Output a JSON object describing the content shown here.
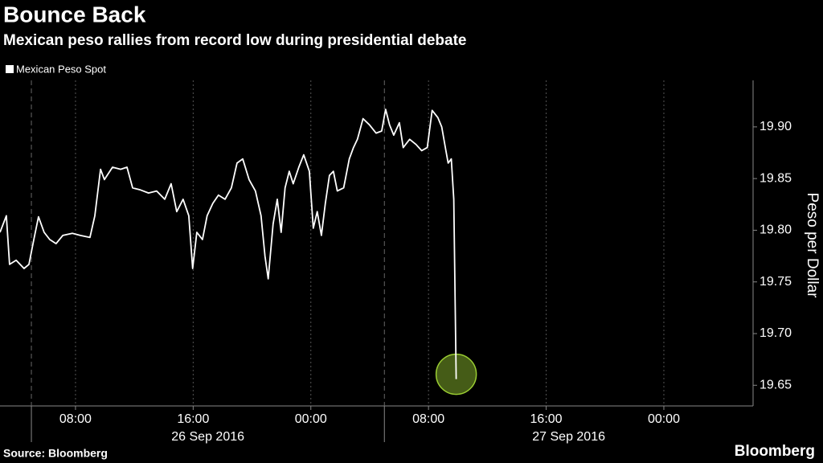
{
  "chart_data": {
    "type": "line",
    "title": "Bounce Back",
    "subtitle": "Mexican peso rallies from record low during presidential debate",
    "y_label": "Peso per Dollar",
    "source": "Source: Bloomberg",
    "brand": "Bloomberg",
    "grid": "x",
    "legend": "top-left",
    "xlim": [
      "2016-09-26T02:52",
      "2016-09-28T06:04"
    ],
    "xticks": [
      {
        "value": "2016-09-26T08:00",
        "label": "08:00"
      },
      {
        "value": "2016-09-26T16:00",
        "label": "16:00"
      },
      {
        "value": "2016-09-27T00:00",
        "label": "00:00"
      },
      {
        "value": "2016-09-27T08:00",
        "label": "08:00"
      },
      {
        "value": "2016-09-27T16:00",
        "label": "16:00"
      },
      {
        "value": "2016-09-28T00:00",
        "label": "00:00"
      }
    ],
    "day_breaks": [
      "2016-09-26T05:00",
      "2016-09-27T05:00"
    ],
    "date_labels": [
      "26 Sep 2016",
      "27 Sep 2016"
    ],
    "ylim": [
      19.63,
      19.945
    ],
    "yticks": [
      19.65,
      {
        "value": 19.7,
        "label": "19.70"
      },
      19.75,
      {
        "value": 19.8,
        "label": "19.80"
      },
      19.85,
      {
        "value": 19.9,
        "label": "19.90"
      }
    ],
    "x": [
      "2016-09-26T02:52",
      "2016-09-26T03:18",
      "2016-09-26T03:31",
      "2016-09-26T03:58",
      "2016-09-26T04:30",
      "2016-09-26T04:50",
      "2016-09-26T05:10",
      "2016-09-26T05:29",
      "2016-09-26T05:52",
      "2016-09-26T06:15",
      "2016-09-26T06:41",
      "2016-09-26T07:08",
      "2016-09-26T07:47",
      "2016-09-26T08:20",
      "2016-09-26T08:59",
      "2016-09-26T09:19",
      "2016-09-26T09:42",
      "2016-09-26T09:58",
      "2016-09-26T10:31",
      "2016-09-26T11:04",
      "2016-09-26T11:30",
      "2016-09-26T11:53",
      "2016-09-26T12:25",
      "2016-09-26T12:58",
      "2016-09-26T13:31",
      "2016-09-26T14:04",
      "2016-09-26T14:30",
      "2016-09-26T14:53",
      "2016-09-26T15:19",
      "2016-09-26T15:42",
      "2016-09-26T15:58",
      "2016-09-26T16:15",
      "2016-09-26T16:38",
      "2016-09-26T16:57",
      "2016-09-26T17:20",
      "2016-09-26T17:43",
      "2016-09-26T18:10",
      "2016-09-26T18:36",
      "2016-09-26T18:59",
      "2016-09-26T19:22",
      "2016-09-26T19:48",
      "2016-09-26T20:14",
      "2016-09-26T20:37",
      "2016-09-26T20:53",
      "2016-09-26T21:06",
      "2016-09-26T21:26",
      "2016-09-26T21:43",
      "2016-09-26T21:59",
      "2016-09-26T22:15",
      "2016-09-26T22:32",
      "2016-09-26T22:48",
      "2016-09-26T23:11",
      "2016-09-26T23:31",
      "2016-09-26T23:54",
      "2016-09-27T00:10",
      "2016-09-27T00:26",
      "2016-09-27T00:43",
      "2016-09-27T00:59",
      "2016-09-27T01:16",
      "2016-09-27T01:32",
      "2016-09-27T01:48",
      "2016-09-27T02:14",
      "2016-09-27T02:37",
      "2016-09-27T02:54",
      "2016-09-27T03:10",
      "2016-09-27T03:33",
      "2016-09-27T03:59",
      "2016-09-27T04:26",
      "2016-09-27T04:49",
      "2016-09-27T05:05",
      "2016-09-27T05:21",
      "2016-09-27T05:38",
      "2016-09-27T06:01",
      "2016-09-27T06:17",
      "2016-09-27T06:43",
      "2016-09-27T07:09",
      "2016-09-27T07:32",
      "2016-09-27T07:55",
      "2016-09-27T08:15",
      "2016-09-27T08:38",
      "2016-09-27T08:54",
      "2016-09-27T09:11",
      "2016-09-27T09:20",
      "2016-09-27T09:33",
      "2016-09-27T09:43",
      "2016-09-27T09:53"
    ],
    "series": [
      {
        "name": "Mexican Peso Spot",
        "color": "#ffffff",
        "highlight_color": "#9acd32",
        "values": [
          19.798,
          19.814,
          19.767,
          19.771,
          19.763,
          19.767,
          19.791,
          19.813,
          19.798,
          19.791,
          19.787,
          19.795,
          19.797,
          19.795,
          19.793,
          19.814,
          19.859,
          19.849,
          19.861,
          19.859,
          19.861,
          19.841,
          19.839,
          19.836,
          19.838,
          19.83,
          19.845,
          19.818,
          19.83,
          19.814,
          19.763,
          19.798,
          19.791,
          19.814,
          19.826,
          19.834,
          19.83,
          19.841,
          19.865,
          19.869,
          19.849,
          19.838,
          19.814,
          19.775,
          19.753,
          19.806,
          19.83,
          19.798,
          19.841,
          19.857,
          19.845,
          19.861,
          19.873,
          19.857,
          19.802,
          19.818,
          19.795,
          19.826,
          19.853,
          19.857,
          19.838,
          19.841,
          19.869,
          19.88,
          19.888,
          19.908,
          19.902,
          19.894,
          19.896,
          19.917,
          19.902,
          19.892,
          19.904,
          19.88,
          19.888,
          19.883,
          19.877,
          19.88,
          19.916,
          19.909,
          19.9,
          19.877,
          19.865,
          19.869,
          19.83,
          19.656
        ]
      }
    ]
  }
}
